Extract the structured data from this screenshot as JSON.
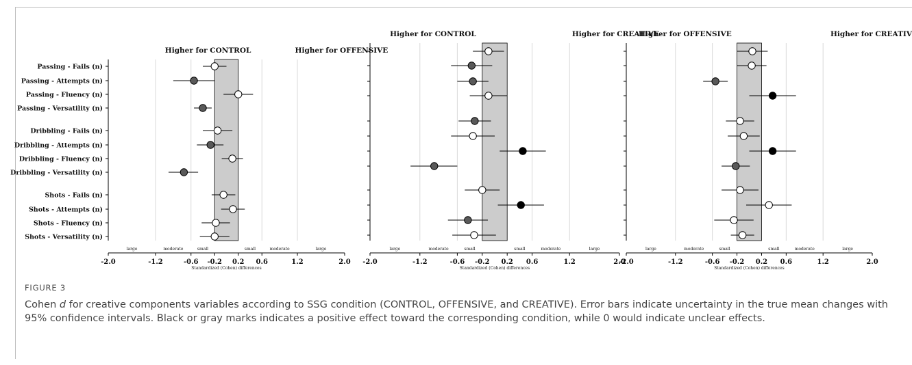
{
  "figure": {
    "title": "FIGURE 3",
    "caption_runs": [
      "Cohen ",
      "d",
      " for creative components variables according to SSG condition (CONTROL, OFFENSIVE, and CREATIVE). Error bars indicate uncertainty in the true mean changes with 95% confidence intervals. Black or gray marks indicates a positive effect toward the corresponding condition, while 0 would indicate unclear effects."
    ]
  },
  "colors": {
    "white_marker": "#ffffff",
    "gray_marker": "#595959",
    "black_marker": "#000000",
    "trivial_zone": "#cccccc",
    "gridline": "#d8d8d8"
  },
  "chart_data": [
    {
      "type": "forest",
      "headers": [
        "Higher for CONTROL",
        "Higher for OFFENSIVE"
      ],
      "xlabel": "Standardized (Cohen) differences",
      "xlim": [
        -2.0,
        2.0
      ],
      "xticks": [
        "-2.0",
        "-1.2",
        "-0.6",
        "-0.2",
        "0.2",
        "0.6",
        "1.2",
        "2.0"
      ],
      "magnitude_labels": [
        "large",
        "moderate",
        "small",
        "small",
        "moderate",
        "large"
      ],
      "trivial_range": [
        -0.2,
        0.2
      ],
      "grid": true,
      "categories": [
        "Passing - Fails (n)",
        "Passing - Attempts (n)",
        "Passing - Fluency (n)",
        "Passing - Versatility (n)",
        "Dribbling - Fails (n)",
        "Dribbling - Attempts (n)",
        "Dribbling - Fluency (n)",
        "Dribbling - Versatility (n)",
        "Shots - Fails (n)",
        "Shots - Attempts (n)",
        "Shots - Fluency (n)",
        "Shots - Versatility (n)"
      ],
      "series": [
        {
          "values": [
            -0.2,
            -0.55,
            0.2,
            -0.4,
            -0.15,
            -0.27,
            0.1,
            -0.72,
            -0.05,
            0.11,
            -0.18,
            -0.2
          ],
          "ci_low": [
            -0.4,
            -0.9,
            -0.05,
            -0.55,
            -0.4,
            -0.5,
            -0.08,
            -0.98,
            -0.25,
            -0.09,
            -0.42,
            -0.45
          ],
          "ci_high": [
            0.0,
            -0.2,
            0.45,
            -0.25,
            0.1,
            -0.05,
            0.28,
            -0.48,
            0.15,
            0.31,
            0.06,
            0.05
          ],
          "marker": [
            "white",
            "gray",
            "white",
            "gray",
            "white",
            "gray",
            "white",
            "gray",
            "white",
            "white",
            "white",
            "white"
          ]
        }
      ]
    },
    {
      "type": "forest",
      "headers": [
        "Higher for CONTROL",
        "Higher for CREATIVE"
      ],
      "xlabel": "Standardized (Cohen) differences",
      "xlim": [
        -2.0,
        2.0
      ],
      "xticks": [
        "-2.0",
        "-1.2",
        "-0.6",
        "-0.2",
        "0.2",
        "0.6",
        "1.2",
        "2.0"
      ],
      "magnitude_labels": [
        "large",
        "moderate",
        "small",
        "small",
        "moderate",
        "large"
      ],
      "trivial_range": [
        -0.2,
        0.2
      ],
      "grid": true,
      "series": [
        {
          "values": [
            -0.1,
            -0.37,
            -0.35,
            -0.1,
            -0.32,
            -0.35,
            0.45,
            -0.97,
            -0.2,
            0.42,
            -0.43,
            -0.33
          ],
          "ci_low": [
            -0.35,
            -0.7,
            -0.6,
            -0.4,
            -0.58,
            -0.7,
            0.08,
            -1.35,
            -0.48,
            0.05,
            -0.75,
            -0.68
          ],
          "ci_high": [
            0.15,
            -0.04,
            -0.1,
            0.2,
            -0.06,
            0.0,
            0.82,
            -0.6,
            0.08,
            0.79,
            -0.11,
            0.02
          ],
          "marker": [
            "white",
            "gray",
            "gray",
            "white",
            "gray",
            "white",
            "black",
            "gray",
            "white",
            "black",
            "gray",
            "white"
          ]
        }
      ]
    },
    {
      "type": "forest",
      "headers": [
        "Higher for OFFENSIVE",
        "Higher for CREATIVE"
      ],
      "xlabel": "Standardized (Cohen) differences",
      "xlim": [
        -2.0,
        2.0
      ],
      "xticks": [
        "-2.0",
        "-1.2",
        "-0.6",
        "-0.2",
        "0.2",
        "0.6",
        "1.2",
        "2.0"
      ],
      "magnitude_labels": [
        "large",
        "moderate",
        "small",
        "small",
        "moderate",
        "large"
      ],
      "trivial_range": [
        -0.2,
        0.2
      ],
      "grid": true,
      "series": [
        {
          "values": [
            0.05,
            0.04,
            -0.55,
            0.38,
            -0.15,
            -0.09,
            0.38,
            -0.22,
            -0.15,
            0.32,
            -0.25,
            -0.11
          ],
          "ci_low": [
            -0.2,
            -0.2,
            -0.75,
            0.0,
            -0.38,
            -0.35,
            0.0,
            -0.45,
            -0.45,
            -0.05,
            -0.57,
            -0.3
          ],
          "ci_high": [
            0.3,
            0.28,
            -0.35,
            0.76,
            0.08,
            0.17,
            0.76,
            0.01,
            0.15,
            0.69,
            0.07,
            0.08
          ],
          "marker": [
            "white",
            "white",
            "gray",
            "black",
            "white",
            "white",
            "black",
            "gray",
            "white",
            "white",
            "white",
            "white"
          ]
        }
      ]
    }
  ]
}
